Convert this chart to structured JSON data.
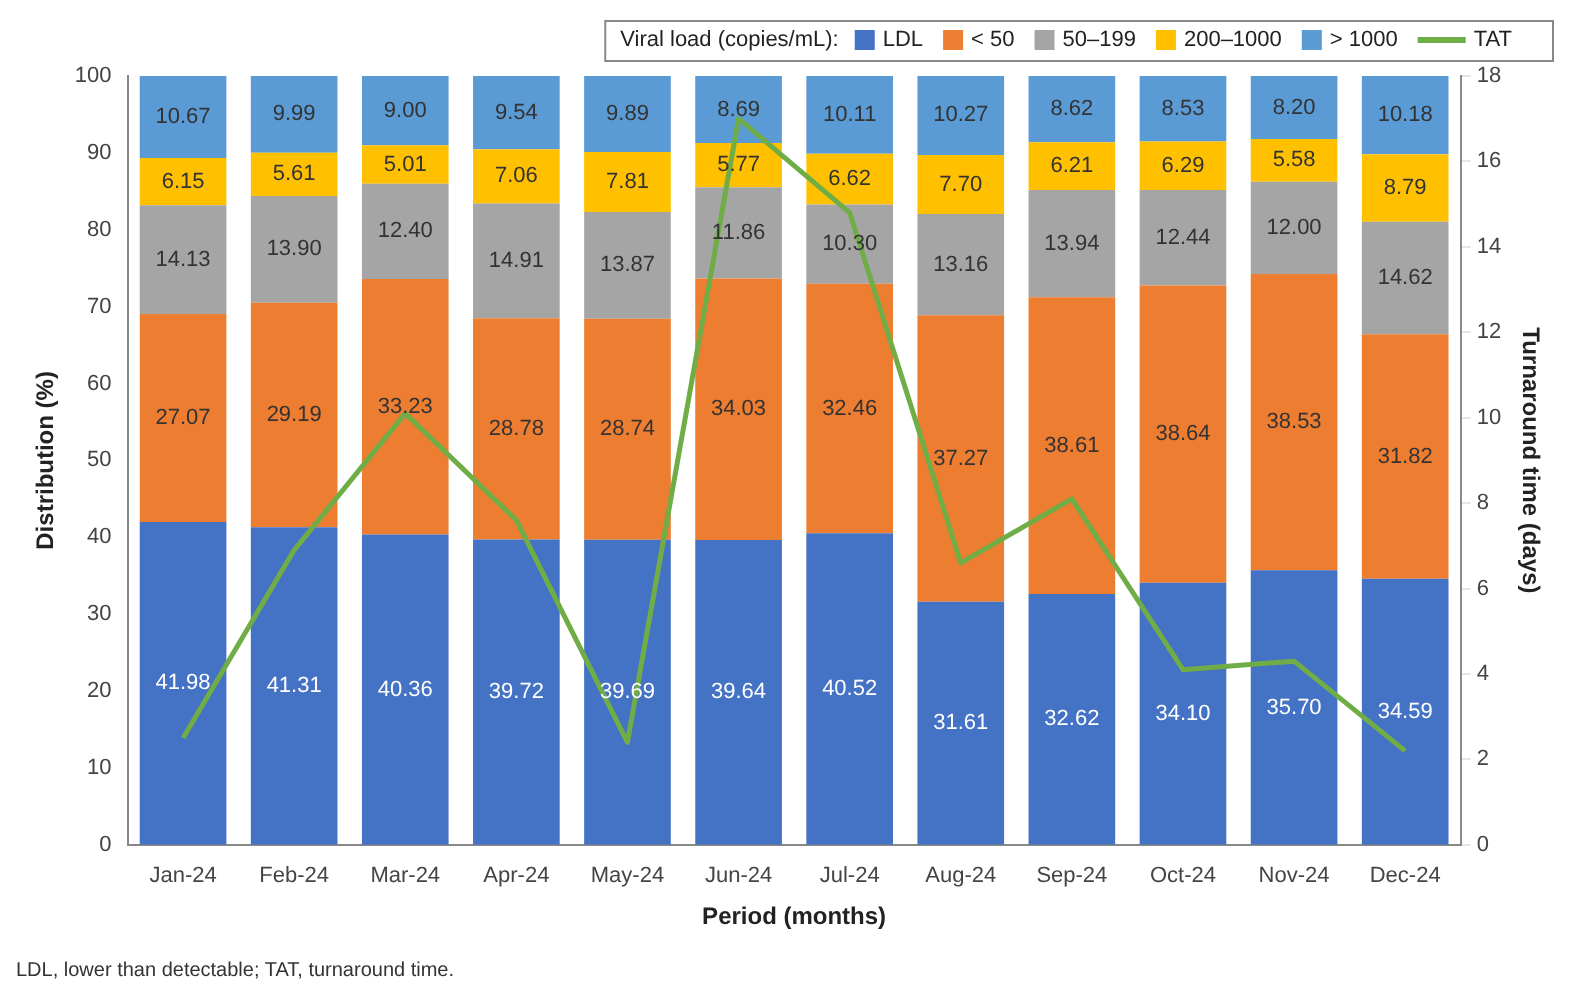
{
  "chart_data": {
    "type": "bar",
    "stacked": true,
    "xlabel": "Period (months)",
    "ylabel": "Distribution (%)",
    "y2label": "Turnaround time (days)",
    "legend_title": "Viral load (copies/mL):",
    "legend": "top right",
    "grid": false,
    "marker": "none",
    "categories": [
      "Jan-24",
      "Feb-24",
      "Mar-24",
      "Apr-24",
      "May-24",
      "Jun-24",
      "Jul-24",
      "Aug-24",
      "Sep-24",
      "Oct-24",
      "Nov-24",
      "Dec-24"
    ],
    "ylim": [
      0,
      100
    ],
    "yticks": [
      0,
      10,
      20,
      30,
      40,
      50,
      60,
      70,
      80,
      90,
      100
    ],
    "y2lim": [
      0,
      18
    ],
    "y2ticks": [
      0,
      2,
      4,
      6,
      8,
      10,
      12,
      14,
      16,
      18
    ],
    "series": [
      {
        "name": "LDL",
        "color": "#4472c4",
        "values": [
          41.98,
          41.31,
          40.36,
          39.72,
          39.69,
          39.64,
          40.52,
          31.61,
          32.62,
          34.1,
          35.7,
          34.59
        ],
        "value_labels": [
          "41.98",
          "41.31",
          "40.36",
          "39.72",
          "39.69",
          "39.64",
          "40.52",
          "31.61",
          "32.62",
          "34.10",
          "35.70",
          "34.59"
        ]
      },
      {
        "name": "< 50",
        "color": "#ed7d31",
        "values": [
          27.07,
          29.19,
          33.23,
          28.78,
          28.74,
          34.03,
          32.46,
          37.27,
          38.61,
          38.64,
          38.53,
          31.82
        ],
        "value_labels": [
          "27.07",
          "29.19",
          "33.23",
          "28.78",
          "28.74",
          "34.03",
          "32.46",
          "37.27",
          "38.61",
          "38.64",
          "38.53",
          "31.82"
        ]
      },
      {
        "name": "50–199",
        "color": "#a5a5a5",
        "values": [
          14.13,
          13.9,
          12.4,
          14.91,
          13.87,
          11.86,
          10.3,
          13.16,
          13.94,
          12.44,
          12.0,
          14.62
        ],
        "value_labels": [
          "14.13",
          "13.90",
          "12.40",
          "14.91",
          "13.87",
          "11.86",
          "10.30",
          "13.16",
          "13.94",
          "12.44",
          "12.00",
          "14.62"
        ]
      },
      {
        "name": "200–1000",
        "color": "#ffc000",
        "values": [
          6.15,
          5.61,
          5.01,
          7.06,
          7.81,
          5.77,
          6.62,
          7.7,
          6.21,
          6.29,
          5.58,
          8.79
        ],
        "value_labels": [
          "6.15",
          "5.61",
          "5.01",
          "7.06",
          "7.81",
          "5.77",
          "6.62",
          "7.70",
          "6.21",
          "6.29",
          "5.58",
          "8.79"
        ]
      },
      {
        "name": "> 1000",
        "color": "#5b9bd5",
        "values": [
          10.67,
          9.99,
          9.0,
          9.54,
          9.89,
          8.69,
          10.11,
          10.27,
          8.62,
          8.53,
          8.2,
          10.18
        ],
        "value_labels": [
          "10.67",
          "9.99",
          "9.00",
          "9.54",
          "9.89",
          "8.69",
          "10.11",
          "10.27",
          "8.62",
          "8.53",
          "8.20",
          "10.18"
        ]
      },
      {
        "name": "TAT",
        "type": "line",
        "axis": "y2",
        "color": "#70ad47",
        "values": [
          2.5,
          6.9,
          10.1,
          7.6,
          2.4,
          17.0,
          14.8,
          6.6,
          8.1,
          4.1,
          4.3,
          2.2
        ]
      }
    ],
    "annotations": [
      "LDL, lower than detectable; TAT, turnaround time."
    ]
  }
}
